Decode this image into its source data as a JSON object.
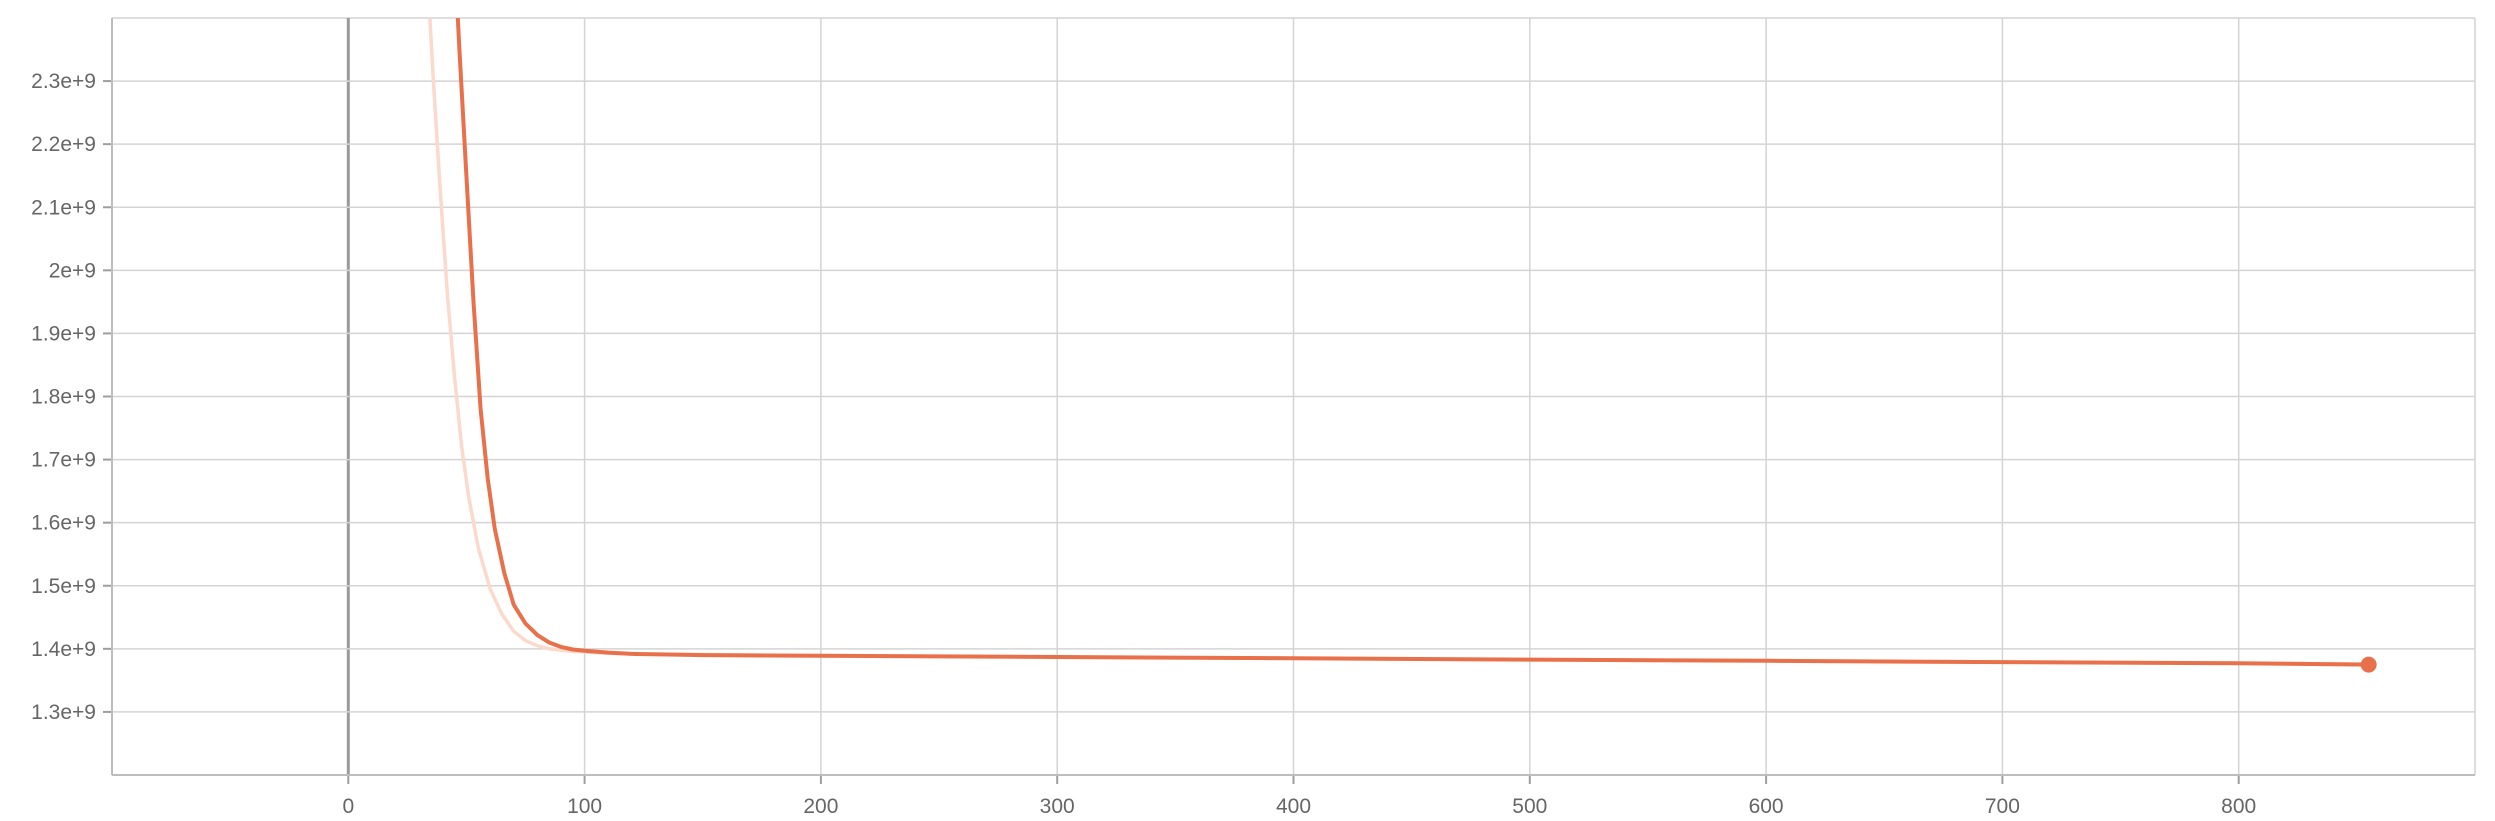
{
  "chart_data": {
    "type": "line",
    "title": "",
    "xlabel": "",
    "ylabel": "",
    "xlim": [
      -100,
      900
    ],
    "ylim": [
      1200000000,
      2400000000
    ],
    "grid": true,
    "legend": "none",
    "x_ticks": [
      0,
      100,
      200,
      300,
      400,
      500,
      600,
      700,
      800
    ],
    "x_tick_labels": [
      "0",
      "100",
      "200",
      "300",
      "400",
      "500",
      "600",
      "700",
      "800"
    ],
    "y_ticks": [
      1300000000,
      1400000000,
      1500000000,
      1600000000,
      1700000000,
      1800000000,
      1900000000,
      2000000000,
      2100000000,
      2200000000,
      2300000000
    ],
    "y_tick_labels": [
      "1.3e+9",
      "1.4e+9",
      "1.5e+9",
      "1.6e+9",
      "1.7e+9",
      "1.8e+9",
      "1.9e+9",
      "2e+9",
      "2.1e+9",
      "2.2e+9",
      "2.3e+9"
    ],
    "colors": {
      "smoothed": "#e8714b",
      "raw": "#fbd9cc"
    },
    "series": [
      {
        "role": "raw",
        "x": [
          33,
          36,
          39,
          42,
          45,
          48,
          51,
          55,
          60,
          65,
          70,
          75,
          80,
          85,
          90,
          95,
          100,
          110,
          120,
          150,
          200,
          300,
          400,
          500,
          600,
          700,
          800,
          855
        ],
        "values": [
          2500000000,
          2300000000,
          2120000000,
          1960000000,
          1830000000,
          1720000000,
          1640000000,
          1560000000,
          1495000000,
          1455000000,
          1428000000,
          1413000000,
          1405000000,
          1400000000,
          1398000000,
          1396000000,
          1395000000,
          1393000000,
          1392000000,
          1391000000,
          1389000000,
          1387000000,
          1385000000,
          1383000000,
          1381000000,
          1379000000,
          1377000000,
          1376000000
        ]
      },
      {
        "role": "smoothed",
        "x": [
          45,
          47,
          50,
          53,
          56,
          59,
          62,
          66,
          70,
          75,
          80,
          85,
          90,
          95,
          100,
          110,
          120,
          135,
          150,
          200,
          300,
          400,
          500,
          600,
          700,
          800,
          855
        ],
        "values": [
          2500000000,
          2350000000,
          2150000000,
          1950000000,
          1780000000,
          1670000000,
          1590000000,
          1520000000,
          1470000000,
          1440000000,
          1422000000,
          1410000000,
          1403000000,
          1399000000,
          1397000000,
          1394000000,
          1392000000,
          1391000000,
          1390000000,
          1389000000,
          1387000000,
          1385000000,
          1383000000,
          1381000000,
          1379000000,
          1377000000,
          1375000000
        ]
      }
    ],
    "last_point": {
      "x": 855,
      "y": 1375000000
    }
  }
}
